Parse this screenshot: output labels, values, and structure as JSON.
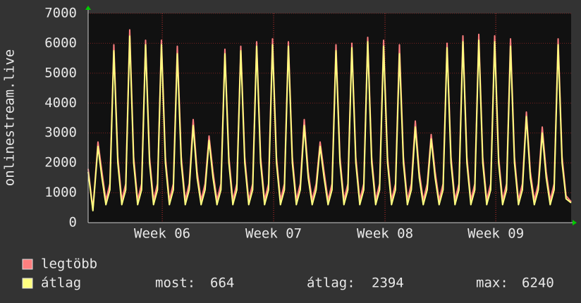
{
  "chart_data": {
    "type": "line",
    "ylabel": "onlinestream.live",
    "x": [
      0,
      0.3,
      0.62,
      0.87,
      1.12,
      1.37,
      1.62,
      1.87,
      2.12,
      2.37,
      2.62,
      2.87,
      3.12,
      3.37,
      3.62,
      3.87,
      4.12,
      4.37,
      4.62,
      4.87,
      5.12,
      5.37,
      5.62,
      5.87,
      6.12,
      6.37,
      6.62,
      6.87,
      7.12,
      7.37,
      7.62,
      7.87,
      8.12,
      8.37,
      8.62,
      8.87,
      9.12,
      9.37,
      9.62,
      9.87,
      10.12,
      10.37,
      10.62,
      10.87,
      11.12,
      11.37,
      11.62,
      11.87,
      12.12,
      12.37,
      12.62,
      12.87,
      13.12,
      13.37,
      13.62,
      13.87,
      14.12,
      14.37,
      14.62,
      14.87,
      15.12,
      15.37,
      15.62,
      15.87,
      16.12,
      16.37,
      16.62,
      16.87,
      17.12,
      17.37,
      17.62,
      17.87,
      18.12,
      18.37,
      18.62,
      18.87,
      19.12,
      19.37,
      19.62,
      19.87,
      20.12,
      20.37,
      20.62,
      20.87,
      21.12,
      21.37,
      21.62,
      21.87,
      22.12,
      22.37,
      22.62,
      22.87,
      23.12,
      23.37,
      23.62,
      23.87,
      24.12,
      24.37,
      24.62,
      24.87,
      25.12,
      25.37,
      25.62,
      25.87,
      26.12,
      26.37,
      26.62,
      26.87,
      27.12,
      27.37,
      27.62,
      27.87,
      28.12,
      28.37,
      28.62,
      28.87,
      29.12,
      29.37,
      29.62,
      29.87,
      30.12,
      30.44
    ],
    "series": [
      {
        "name": "legtöbb",
        "color": "#ff7f7f",
        "values": [
          1800,
          450,
          2700,
          1700,
          750,
          1300,
          5950,
          2200,
          750,
          1300,
          6450,
          2200,
          750,
          1300,
          6100,
          2200,
          750,
          1300,
          6100,
          2200,
          750,
          1300,
          5900,
          2200,
          750,
          1300,
          3450,
          1700,
          750,
          1300,
          2900,
          1700,
          750,
          1300,
          5800,
          2200,
          750,
          1300,
          5900,
          2200,
          750,
          1300,
          6050,
          2200,
          750,
          1300,
          6150,
          2200,
          750,
          1300,
          6050,
          2200,
          750,
          1300,
          3450,
          1700,
          750,
          1300,
          2700,
          1700,
          750,
          1300,
          5950,
          2200,
          750,
          1300,
          6000,
          2200,
          750,
          1300,
          6200,
          2200,
          750,
          1300,
          6100,
          2200,
          750,
          1300,
          5950,
          2200,
          750,
          1300,
          3400,
          1700,
          750,
          1300,
          2950,
          1700,
          750,
          1300,
          6000,
          2200,
          750,
          1300,
          6250,
          2200,
          750,
          1300,
          6300,
          2200,
          750,
          1300,
          6250,
          2200,
          750,
          1300,
          6150,
          2200,
          750,
          1300,
          3700,
          1700,
          750,
          1300,
          3200,
          1700,
          750,
          1300,
          6150,
          2200,
          900,
          700
        ]
      },
      {
        "name": "átlag",
        "color": "#ffff80",
        "values": [
          1700,
          400,
          2550,
          1500,
          600,
          1100,
          5750,
          2000,
          600,
          1100,
          6240,
          2000,
          600,
          1100,
          5950,
          2000,
          600,
          1100,
          5950,
          2000,
          600,
          1100,
          5650,
          2000,
          600,
          1100,
          3250,
          1500,
          600,
          1100,
          2750,
          1500,
          600,
          1100,
          5650,
          2000,
          600,
          1100,
          5750,
          2000,
          600,
          1100,
          5900,
          2000,
          600,
          1100,
          5950,
          2000,
          600,
          1100,
          5900,
          2000,
          600,
          1100,
          3250,
          1500,
          600,
          1100,
          2550,
          1500,
          600,
          1100,
          5750,
          2000,
          600,
          1100,
          5850,
          2000,
          600,
          1100,
          6050,
          2000,
          600,
          1100,
          5900,
          2000,
          600,
          1100,
          5650,
          2000,
          600,
          1100,
          3200,
          1500,
          600,
          1100,
          2800,
          1500,
          600,
          1100,
          5850,
          2000,
          600,
          1100,
          6050,
          2000,
          600,
          1100,
          6100,
          2000,
          600,
          1100,
          6050,
          2000,
          600,
          1100,
          5900,
          2000,
          600,
          1100,
          3550,
          1500,
          600,
          1100,
          3000,
          1500,
          600,
          1100,
          5950,
          2000,
          800,
          664
        ]
      }
    ],
    "xlim": [
      0,
      30.44
    ],
    "xticks": [
      {
        "value": 4.67,
        "label": "Week 06"
      },
      {
        "value": 11.69,
        "label": "Week 07"
      },
      {
        "value": 18.71,
        "label": "Week 08"
      },
      {
        "value": 25.69,
        "label": "Week 09"
      }
    ],
    "ylim": [
      0,
      7000
    ],
    "yticks": [
      0,
      1000,
      2000,
      3000,
      4000,
      5000,
      6000,
      7000
    ],
    "grid": true,
    "stats": [
      {
        "label": "most:",
        "value": 664
      },
      {
        "label": "átlag:",
        "value": 2394
      },
      {
        "label": "max:",
        "value": 6240
      }
    ]
  }
}
